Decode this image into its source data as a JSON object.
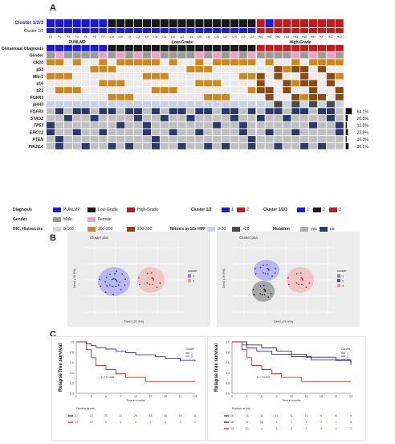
{
  "panels": {
    "a": "A",
    "b": "B",
    "c": "C"
  },
  "heatmap": {
    "top_labels": {
      "cluster123": "Cluster 1/2/3",
      "cluster12": "Cluster 1/2"
    },
    "groups": [
      "PUNLMP",
      "Low-Grade",
      "High-Grade"
    ],
    "samples": [
      "P6",
      "P1",
      "P3",
      "P4",
      "P5",
      "P8",
      "P2",
      "L26",
      "L20",
      "L9",
      "L18",
      "L5",
      "L31",
      "L11",
      "L16",
      "L17",
      "L15",
      "L25",
      "L10",
      "L28",
      "L27",
      "L24",
      "L19",
      "L12",
      "H61",
      "H52",
      "H50",
      "H31",
      "H54",
      "H45",
      "H44",
      "H27",
      "H42",
      "H43"
    ],
    "rows": [
      "Consensus Diagnosis",
      "Gender",
      "CK20",
      "p53",
      "Mib-1",
      "p16",
      "p21",
      "FGFR3",
      "pHH3",
      "FGFR3",
      "STAG2",
      "TP53",
      "ERCC2",
      "PTEN",
      "PIK3CA"
    ],
    "italic_rows": [
      9,
      10,
      11,
      12,
      13,
      14
    ],
    "mutation_pct": [
      "64.1%",
      "20.5%",
      "12.8%",
      "23.8%",
      "10.3%",
      "30.1%"
    ],
    "colors": {
      "punlmp": "#1a1adc",
      "lowgrade": "#1a1a1a",
      "highgrade": "#c41a1a",
      "male": "#9a9a9a",
      "female": "#f0a0c8",
      "ihc_low": "#d8d8d8",
      "ihc_mid": "#d0881a",
      "ihc_high": "#8a4a12",
      "mut": "#2a3a6a",
      "nomut": "#c0c0c0",
      "mitlow": "#c8d4e6",
      "mithigh": "#4a4a4a",
      "c3": "#e01a1a",
      "c2": "#d02020"
    }
  },
  "legend": {
    "diagnosis": {
      "title": "Diagnosis",
      "items": [
        "PUNLMP",
        "Low-Grade",
        "High-Grade"
      ]
    },
    "cluster12": {
      "title": "Cluster 1/2",
      "items": [
        "1",
        "2"
      ]
    },
    "cluster123": {
      "title": "Cluster 1/2/3",
      "items": [
        "1",
        "2",
        "3"
      ]
    },
    "gender": {
      "title": "Gender",
      "items": [
        "Male",
        "Female"
      ]
    },
    "ihc": {
      "title": "IHC, Histoscore",
      "items": [
        "0-100",
        "100-200",
        "200-300"
      ]
    },
    "mitosis": {
      "title": "Mitosis in 10x HPF",
      "items": [
        "0-20",
        ">20"
      ]
    },
    "mutation": {
      "title": "Mutation",
      "items": [
        "yes",
        "no"
      ]
    }
  },
  "cluster_plots": [
    {
      "title": "Cluster plot",
      "xlabel": "Dim1 (21.9%)",
      "ylabel": "Dim2 (16.9%)",
      "legend_title": "cluster",
      "legend_items": [
        "1",
        "2"
      ]
    },
    {
      "title": "Cluster plot",
      "xlabel": "Dim1 (21.9%)",
      "ylabel": "Dim2 (16.9%)",
      "legend_title": "cluster",
      "legend_items": [
        "1",
        "2",
        "3"
      ]
    }
  ],
  "chart_data": [
    {
      "type": "line",
      "ylabel": "Relapse free survival",
      "xlabel": "Time in months",
      "xticks": [
        0,
        3,
        6,
        9,
        12,
        15,
        18,
        21,
        24
      ],
      "yticks": [
        0.0,
        0.2,
        0.4,
        0.6,
        0.8,
        1.0
      ],
      "pvalue": "p = 0.028",
      "legend_title": "Cluster",
      "series": [
        {
          "name": "1",
          "color": "#1a1adc",
          "x": [
            0,
            2,
            3,
            4,
            6,
            8,
            10,
            12,
            16,
            18,
            21,
            24
          ],
          "y": [
            1.0,
            0.96,
            0.93,
            0.89,
            0.86,
            0.82,
            0.79,
            0.75,
            0.71,
            0.68,
            0.64,
            0.62
          ]
        },
        {
          "name": "2",
          "color": "#c41a1a",
          "x": [
            0,
            2,
            3,
            4,
            6,
            8,
            10,
            14,
            16,
            24
          ],
          "y": [
            1.0,
            0.85,
            0.69,
            0.54,
            0.46,
            0.38,
            0.31,
            0.23,
            0.23,
            0.23
          ]
        }
      ],
      "risk_table": {
        "title": "Number at risk",
        "rows": [
          [
            "31",
            "23",
            "21",
            "21",
            "20",
            "18",
            "16",
            "15",
            "11"
          ],
          [
            "13",
            "10",
            "4",
            "4",
            "4",
            "3",
            "3",
            "3",
            "2"
          ]
        ]
      }
    },
    {
      "type": "line",
      "ylabel": "Relapse free survival",
      "xlabel": "Time in months",
      "xticks": [
        0,
        3,
        6,
        9,
        12,
        15,
        18,
        21,
        24
      ],
      "yticks": [
        0.0,
        0.2,
        0.4,
        0.6,
        0.8,
        1.0
      ],
      "pvalue": "p = 0.069",
      "legend_title": "Cluster",
      "series": [
        {
          "name": "1",
          "color": "#1a1adc",
          "x": [
            0,
            2,
            3,
            5,
            8,
            12,
            15,
            18,
            21,
            24
          ],
          "y": [
            1.0,
            0.94,
            0.88,
            0.82,
            0.76,
            0.76,
            0.7,
            0.7,
            0.64,
            0.58
          ]
        },
        {
          "name": "2",
          "color": "#1a1a1a",
          "x": [
            0,
            3,
            6,
            9,
            12,
            16,
            24
          ],
          "y": [
            1.0,
            0.94,
            0.88,
            0.82,
            0.71,
            0.65,
            0.55
          ]
        },
        {
          "name": "3",
          "color": "#c41a1a",
          "x": [
            0,
            2,
            3,
            4,
            6,
            8,
            10,
            14,
            24
          ],
          "y": [
            1.0,
            0.85,
            0.69,
            0.54,
            0.46,
            0.38,
            0.31,
            0.23,
            0.23
          ]
        }
      ],
      "risk_table": {
        "title": "Number at risk",
        "rows": [
          [
            "16",
            "13",
            "11",
            "11",
            "11",
            "10",
            "9",
            "8",
            "6"
          ],
          [
            "15",
            "11",
            "10",
            "9",
            "7",
            "7",
            "7",
            "7",
            "5"
          ],
          [
            "13",
            "10",
            "4",
            "4",
            "4",
            "3",
            "3",
            "3",
            "2"
          ]
        ]
      }
    }
  ]
}
